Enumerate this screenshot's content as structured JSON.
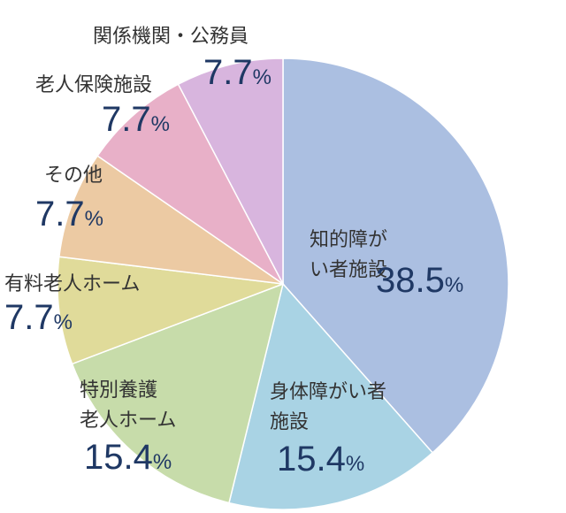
{
  "chart_data": {
    "type": "pie",
    "start": "12 o'clock",
    "direction": "clockwise",
    "slices": [
      {
        "label": "知的障がい者施設",
        "value": 38.5,
        "value_text": "38.5",
        "color": "#abbfe1"
      },
      {
        "label": "身体障がい者施設",
        "value": 15.4,
        "value_text": "15.4",
        "color": "#a9d3e4"
      },
      {
        "label": "特別養護老人ホーム",
        "value": 15.4,
        "value_text": "15.4",
        "color": "#c7dcaa"
      },
      {
        "label": "有料老人ホーム",
        "value": 7.7,
        "value_text": "7.7",
        "color": "#e0db9a"
      },
      {
        "label": "その他",
        "value": 7.7,
        "value_text": "7.7",
        "color": "#eccaa3"
      },
      {
        "label": "老人保険施設",
        "value": 7.7,
        "value_text": "7.7",
        "color": "#e8b0c8"
      },
      {
        "label": "関係機関・公務員",
        "value": 7.7,
        "value_text": "7.7",
        "color": "#d8b5de"
      }
    ],
    "unit": "%"
  }
}
